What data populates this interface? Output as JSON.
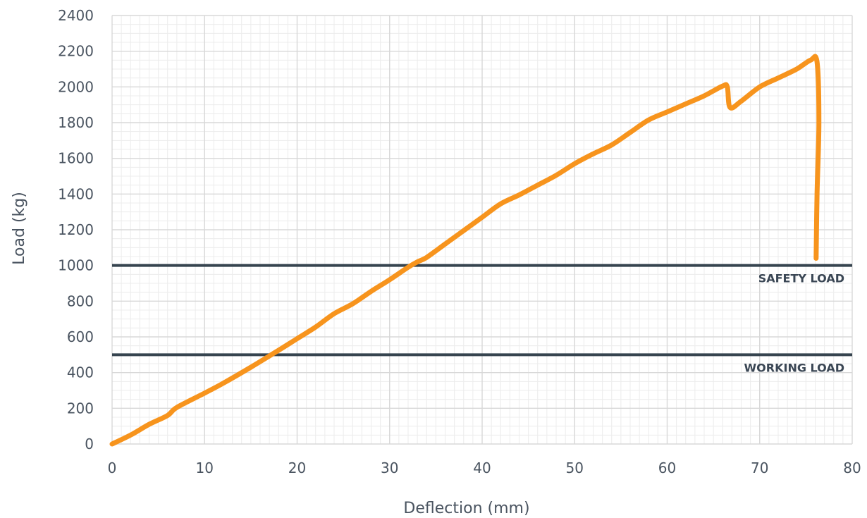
{
  "chart_data": {
    "type": "line",
    "xlabel": "Deflection (mm)",
    "ylabel": "Load (kg)",
    "xlim": [
      0,
      80
    ],
    "ylim": [
      0,
      2400
    ],
    "x_ticks": [
      0,
      10,
      20,
      30,
      40,
      50,
      60,
      70,
      80
    ],
    "y_ticks": [
      0,
      200,
      400,
      600,
      800,
      1000,
      1200,
      1400,
      1600,
      1800,
      2000,
      2200,
      2400
    ],
    "grid": true,
    "series": [
      {
        "color": "#f7941d",
        "points": [
          [
            0,
            0
          ],
          [
            2,
            50
          ],
          [
            4,
            110
          ],
          [
            6,
            160
          ],
          [
            7,
            205
          ],
          [
            10,
            285
          ],
          [
            12,
            340
          ],
          [
            15,
            430
          ],
          [
            18,
            525
          ],
          [
            20,
            590
          ],
          [
            22,
            655
          ],
          [
            24,
            730
          ],
          [
            26,
            785
          ],
          [
            28,
            855
          ],
          [
            30,
            920
          ],
          [
            32,
            990
          ],
          [
            33,
            1020
          ],
          [
            34,
            1045
          ],
          [
            36,
            1120
          ],
          [
            38,
            1195
          ],
          [
            40,
            1270
          ],
          [
            42,
            1345
          ],
          [
            44,
            1395
          ],
          [
            46,
            1450
          ],
          [
            48,
            1505
          ],
          [
            50,
            1570
          ],
          [
            52,
            1625
          ],
          [
            54,
            1675
          ],
          [
            56,
            1745
          ],
          [
            58,
            1815
          ],
          [
            60,
            1860
          ],
          [
            62,
            1905
          ],
          [
            64,
            1950
          ],
          [
            66,
            2005
          ],
          [
            66.5,
            2000
          ],
          [
            66.8,
            1885
          ],
          [
            68,
            1920
          ],
          [
            70,
            2000
          ],
          [
            72,
            2050
          ],
          [
            74,
            2100
          ],
          [
            75.5,
            2150
          ],
          [
            76.2,
            2140
          ],
          [
            76.4,
            1800
          ],
          [
            76.2,
            1400
          ],
          [
            76.1,
            1040
          ]
        ]
      }
    ],
    "reference_lines": [
      {
        "y": 1000,
        "label": "SAFETY LOAD",
        "color": "#36444f"
      },
      {
        "y": 500,
        "label": "WORKING LOAD",
        "color": "#36444f"
      }
    ]
  }
}
